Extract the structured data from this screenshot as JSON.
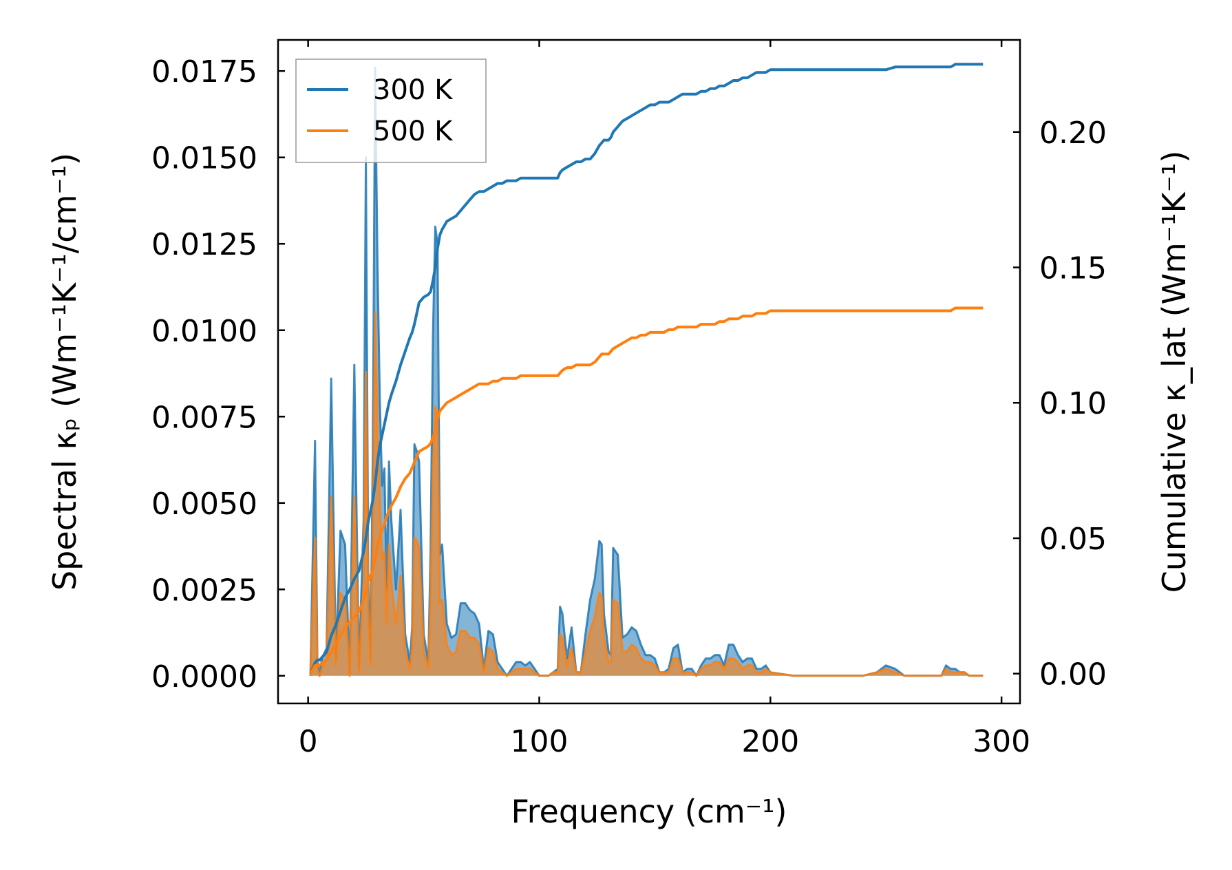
{
  "chart_data": {
    "type": "line",
    "xlabel": "Frequency (cm⁻¹)",
    "ylabel_left": "Spectral κₚ (Wm⁻¹K⁻¹/cm⁻¹)",
    "ylabel_right": "Cumulative κ_lat (Wm⁻¹K⁻¹)",
    "xlim": [
      -13,
      308
    ],
    "ylim_left": [
      -0.0008,
      0.0184
    ],
    "ylim_right": [
      -0.011,
      0.234
    ],
    "x_ticks": [
      "0",
      "100",
      "200",
      "300"
    ],
    "y_left_ticks": [
      "0.0000",
      "0.0025",
      "0.0050",
      "0.0075",
      "0.0100",
      "0.0125",
      "0.0150",
      "0.0175"
    ],
    "y_right_ticks": [
      "0.00",
      "0.05",
      "0.10",
      "0.15",
      "0.20"
    ],
    "legend": {
      "placement": "top-left",
      "entries": [
        "300 K",
        "500 K"
      ]
    },
    "grid": false,
    "colors": {
      "300K": "#1f77b4",
      "500K": "#ff7f0e"
    },
    "spectral": {
      "x": [
        1,
        3,
        4,
        5,
        6,
        8,
        10,
        12,
        14,
        16,
        18,
        20,
        22,
        24,
        25,
        26,
        27,
        28,
        29,
        30,
        31,
        32,
        33,
        34,
        35,
        36,
        38,
        40,
        42,
        44,
        45,
        46,
        47,
        48,
        50,
        52,
        53,
        54,
        55,
        56,
        57,
        58,
        60,
        62,
        64,
        66,
        68,
        70,
        72,
        74,
        76,
        78,
        80,
        82,
        84,
        86,
        88,
        90,
        92,
        94,
        96,
        98,
        100,
        104,
        106,
        108,
        109,
        110,
        112,
        114,
        116,
        118,
        120,
        122,
        124,
        126,
        127,
        128,
        130,
        131,
        132,
        134,
        136,
        138,
        140,
        142,
        144,
        146,
        148,
        150,
        152,
        154,
        156,
        158,
        160,
        162,
        164,
        166,
        168,
        170,
        172,
        174,
        176,
        178,
        180,
        182,
        184,
        186,
        188,
        190,
        192,
        194,
        196,
        198,
        200,
        210,
        220,
        230,
        240,
        246,
        250,
        254,
        258,
        262,
        266,
        270,
        274,
        276,
        278,
        280,
        282,
        284,
        286,
        288,
        290,
        292
      ],
      "series": [
        {
          "name": "300 K",
          "values": [
            0,
            0.0068,
            0.0005,
            0,
            0.0005,
            0.0008,
            0.0086,
            0.0005,
            0.0042,
            0.0038,
            0.0001,
            0.009,
            0.0002,
            0.0045,
            0.015,
            0.003,
            0.0005,
            0.0065,
            0.0176,
            0.012,
            0.008,
            0.0055,
            0.006,
            0.0025,
            0.0062,
            0.0045,
            0.0025,
            0.0048,
            0.0012,
            0.0004,
            0.0014,
            0.0067,
            0.0065,
            0.0062,
            0.0012,
            0.0004,
            0.0036,
            0.0098,
            0.013,
            0.0125,
            0.0035,
            0.0038,
            0.0015,
            0.0011,
            0.0012,
            0.0021,
            0.0021,
            0.0019,
            0.0018,
            0.0015,
            0.0002,
            0.0013,
            0.0012,
            0.0004,
            0.0002,
            0,
            0.0002,
            0.0004,
            0.0004,
            0.0003,
            0.0004,
            0.0002,
            0,
            0,
            0.0001,
            0.0002,
            0.002,
            0.0018,
            0.0005,
            0.0014,
            0.0001,
            0.0001,
            0.0012,
            0.0022,
            0.0028,
            0.0039,
            0.0038,
            0.0018,
            0.0007,
            0.0006,
            0.0037,
            0.0035,
            0.0011,
            0.0012,
            0.0014,
            0.0013,
            0.0009,
            0.0006,
            0.0006,
            0.0005,
            0.0001,
            0.0001,
            0.0002,
            0.0008,
            0.0009,
            0.0001,
            0.0002,
            0.0002,
            0,
            0.0003,
            0.0005,
            0.0005,
            0.0006,
            0.0006,
            0.0003,
            0.0009,
            0.0009,
            0.0006,
            0.0004,
            0.0005,
            0.0005,
            0.0002,
            0.0002,
            0.0003,
            0.0001,
            0,
            0,
            0,
            0,
            0.0001,
            0.0003,
            0.0002,
            0,
            0,
            0,
            0,
            0,
            0.0003,
            0.0002,
            0.0002,
            0.0001,
            0.0001,
            0,
            0,
            0,
            0
          ],
          "cumulative": [
            0,
            0.004,
            0.005,
            0.005,
            0.006,
            0.008,
            0.014,
            0.018,
            0.023,
            0.028,
            0.031,
            0.035,
            0.038,
            0.045,
            0.05,
            0.056,
            0.06,
            0.064,
            0.07,
            0.078,
            0.084,
            0.088,
            0.092,
            0.096,
            0.1,
            0.103,
            0.108,
            0.114,
            0.119,
            0.124,
            0.126,
            0.129,
            0.133,
            0.137,
            0.139,
            0.14,
            0.141,
            0.145,
            0.15,
            0.157,
            0.162,
            0.164,
            0.167,
            0.168,
            0.169,
            0.171,
            0.173,
            0.175,
            0.177,
            0.178,
            0.178,
            0.179,
            0.18,
            0.181,
            0.181,
            0.182,
            0.182,
            0.182,
            0.183,
            0.183,
            0.183,
            0.183,
            0.183,
            0.183,
            0.183,
            0.183,
            0.185,
            0.186,
            0.187,
            0.188,
            0.189,
            0.189,
            0.19,
            0.19,
            0.192,
            0.195,
            0.196,
            0.197,
            0.197,
            0.198,
            0.2,
            0.202,
            0.204,
            0.205,
            0.206,
            0.207,
            0.208,
            0.209,
            0.21,
            0.21,
            0.211,
            0.211,
            0.211,
            0.212,
            0.213,
            0.214,
            0.214,
            0.214,
            0.214,
            0.215,
            0.215,
            0.216,
            0.216,
            0.217,
            0.217,
            0.218,
            0.219,
            0.219,
            0.22,
            0.22,
            0.221,
            0.222,
            0.222,
            0.222,
            0.223,
            0.223,
            0.223,
            0.223,
            0.223,
            0.223,
            0.223,
            0.224,
            0.224,
            0.224,
            0.224,
            0.224,
            0.224,
            0.224,
            0.224,
            0.225,
            0.225,
            0.225,
            0.225,
            0.225,
            0.225,
            0.225
          ]
        },
        {
          "name": "500 K",
          "values": [
            0,
            0.004,
            0.0002,
            0,
            0.0002,
            0.0005,
            0.0052,
            0.0003,
            0.0024,
            0.0022,
            0,
            0.0052,
            0.0001,
            0.0027,
            0.0088,
            0.002,
            0.0003,
            0.004,
            0.0105,
            0.0072,
            0.005,
            0.0034,
            0.0036,
            0.0015,
            0.0038,
            0.0027,
            0.0015,
            0.0029,
            0.0007,
            0.0002,
            0.0008,
            0.004,
            0.0039,
            0.0037,
            0.0007,
            0.0002,
            0.0022,
            0.006,
            0.0078,
            0.0075,
            0.0021,
            0.0022,
            0.0009,
            0.0006,
            0.0007,
            0.0013,
            0.0013,
            0.0011,
            0.0011,
            0.0009,
            0.0001,
            0.0008,
            0.0007,
            0.0002,
            0.0001,
            0,
            0.0001,
            0.0002,
            0.0002,
            0.0002,
            0.0002,
            0.0001,
            0,
            0,
            0.0001,
            0.0001,
            0.0012,
            0.0011,
            0.0003,
            0.0008,
            0.0001,
            0.0001,
            0.0007,
            0.0013,
            0.0017,
            0.0024,
            0.0023,
            0.0011,
            0.0004,
            0.0004,
            0.0022,
            0.0021,
            0.0007,
            0.0007,
            0.0009,
            0.0008,
            0.0005,
            0.0004,
            0.0004,
            0.0003,
            0.0001,
            0.0001,
            0.0001,
            0.0005,
            0.0005,
            0.0001,
            0.0001,
            0.0001,
            0,
            0.0002,
            0.0003,
            0.0003,
            0.0004,
            0.0004,
            0.0002,
            0.0005,
            0.0005,
            0.0004,
            0.0002,
            0.0003,
            0.0003,
            0.0001,
            0.0001,
            0.0002,
            0.0001,
            0,
            0,
            0,
            0,
            0.0001,
            0.0002,
            0.0001,
            0,
            0,
            0,
            0,
            0,
            0.0002,
            0.0001,
            0.0001,
            0.0001,
            0.0001,
            0,
            0,
            0,
            0
          ],
          "cumulative": [
            0,
            0.003,
            0.003,
            0.003,
            0.004,
            0.005,
            0.008,
            0.011,
            0.014,
            0.017,
            0.019,
            0.021,
            0.023,
            0.027,
            0.03,
            0.034,
            0.036,
            0.038,
            0.042,
            0.047,
            0.051,
            0.053,
            0.055,
            0.058,
            0.06,
            0.062,
            0.065,
            0.069,
            0.072,
            0.074,
            0.076,
            0.078,
            0.08,
            0.082,
            0.083,
            0.084,
            0.085,
            0.087,
            0.09,
            0.094,
            0.097,
            0.098,
            0.1,
            0.101,
            0.102,
            0.103,
            0.104,
            0.105,
            0.106,
            0.107,
            0.107,
            0.107,
            0.108,
            0.108,
            0.109,
            0.109,
            0.109,
            0.109,
            0.11,
            0.11,
            0.11,
            0.11,
            0.11,
            0.11,
            0.11,
            0.11,
            0.111,
            0.112,
            0.113,
            0.113,
            0.114,
            0.114,
            0.114,
            0.114,
            0.115,
            0.117,
            0.118,
            0.118,
            0.118,
            0.119,
            0.12,
            0.121,
            0.122,
            0.123,
            0.124,
            0.124,
            0.125,
            0.125,
            0.126,
            0.126,
            0.126,
            0.126,
            0.127,
            0.127,
            0.128,
            0.128,
            0.128,
            0.128,
            0.128,
            0.129,
            0.129,
            0.129,
            0.129,
            0.13,
            0.13,
            0.131,
            0.131,
            0.131,
            0.132,
            0.132,
            0.132,
            0.133,
            0.133,
            0.133,
            0.134,
            0.134,
            0.134,
            0.134,
            0.134,
            0.134,
            0.134,
            0.134,
            0.134,
            0.134,
            0.134,
            0.134,
            0.134,
            0.134,
            0.134,
            0.135,
            0.135,
            0.135,
            0.135,
            0.135,
            0.135,
            0.135
          ]
        }
      ]
    }
  }
}
